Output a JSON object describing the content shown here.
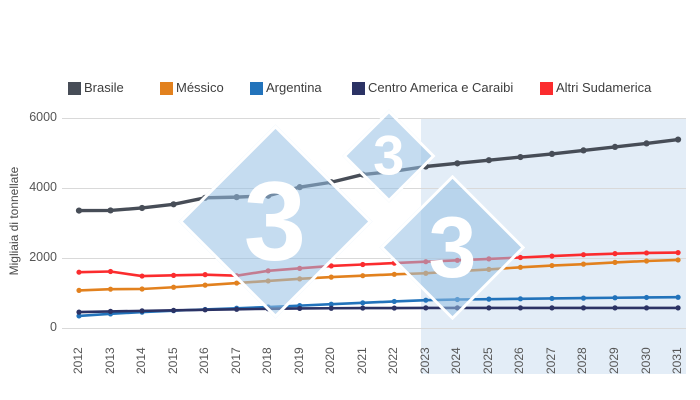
{
  "y_axis": {
    "title": "Migliaia di tonnellate",
    "ticks": [
      "0",
      "2000",
      "4000",
      "6000"
    ]
  },
  "legend": [
    {
      "label": "Brasile",
      "color": "#474d57"
    },
    {
      "label": "Méssico",
      "color": "#e2811e"
    },
    {
      "label": "Argentina",
      "color": "#2273bb"
    },
    {
      "label": "Centro America e Caraibi",
      "color": "#2b3264"
    },
    {
      "label": "Altri Sudamerica",
      "color": "#fb2c2e"
    }
  ],
  "watermark": {
    "digit": "3",
    "fill": "rgba(150,191,228,0.55)"
  },
  "forecast": {
    "start_year": "2023",
    "shade_color": "#e3edf7"
  },
  "chart_data": {
    "type": "line",
    "title": "",
    "xlabel": "",
    "ylabel": "Migliaia di tonnellate",
    "ylim": [
      0,
      6000
    ],
    "grid": true,
    "legend_position": "top",
    "forecast_region": {
      "from": "2023",
      "to": "2031"
    },
    "x": [
      "2012",
      "2013",
      "2014",
      "2015",
      "2016",
      "2017",
      "2018",
      "2019",
      "2020",
      "2021",
      "2022",
      "2023",
      "2024",
      "2025",
      "2026",
      "2027",
      "2028",
      "2029",
      "2030",
      "2031"
    ],
    "series": [
      {
        "name": "Brasile",
        "color": "#474d57",
        "values": [
          3340,
          3345,
          3415,
          3520,
          3705,
          3725,
          3765,
          4010,
          4150,
          4370,
          4465,
          4600,
          4690,
          4780,
          4870,
          4960,
          5060,
          5160,
          5260,
          5370
        ]
      },
      {
        "name": "Méssico",
        "color": "#e2811e",
        "values": [
          1060,
          1095,
          1100,
          1150,
          1210,
          1270,
          1330,
          1390,
          1440,
          1480,
          1520,
          1550,
          1610,
          1660,
          1720,
          1770,
          1810,
          1860,
          1900,
          1930
        ]
      },
      {
        "name": "Argentina",
        "color": "#2273bb",
        "values": [
          330,
          390,
          440,
          480,
          515,
          550,
          585,
          625,
          665,
          705,
          745,
          780,
          800,
          810,
          820,
          830,
          840,
          850,
          858,
          865
        ]
      },
      {
        "name": "Centro America e Caraibi",
        "color": "#2b3264",
        "values": [
          440,
          460,
          475,
          490,
          505,
          520,
          535,
          545,
          550,
          555,
          555,
          560,
          560,
          560,
          560,
          560,
          560,
          560,
          560,
          560
        ]
      },
      {
        "name": "Altri Sudamerica",
        "color": "#fb2c2e",
        "values": [
          1580,
          1600,
          1470,
          1490,
          1510,
          1480,
          1620,
          1690,
          1760,
          1800,
          1840,
          1880,
          1920,
          1960,
          2000,
          2040,
          2080,
          2110,
          2130,
          2140
        ]
      }
    ]
  }
}
